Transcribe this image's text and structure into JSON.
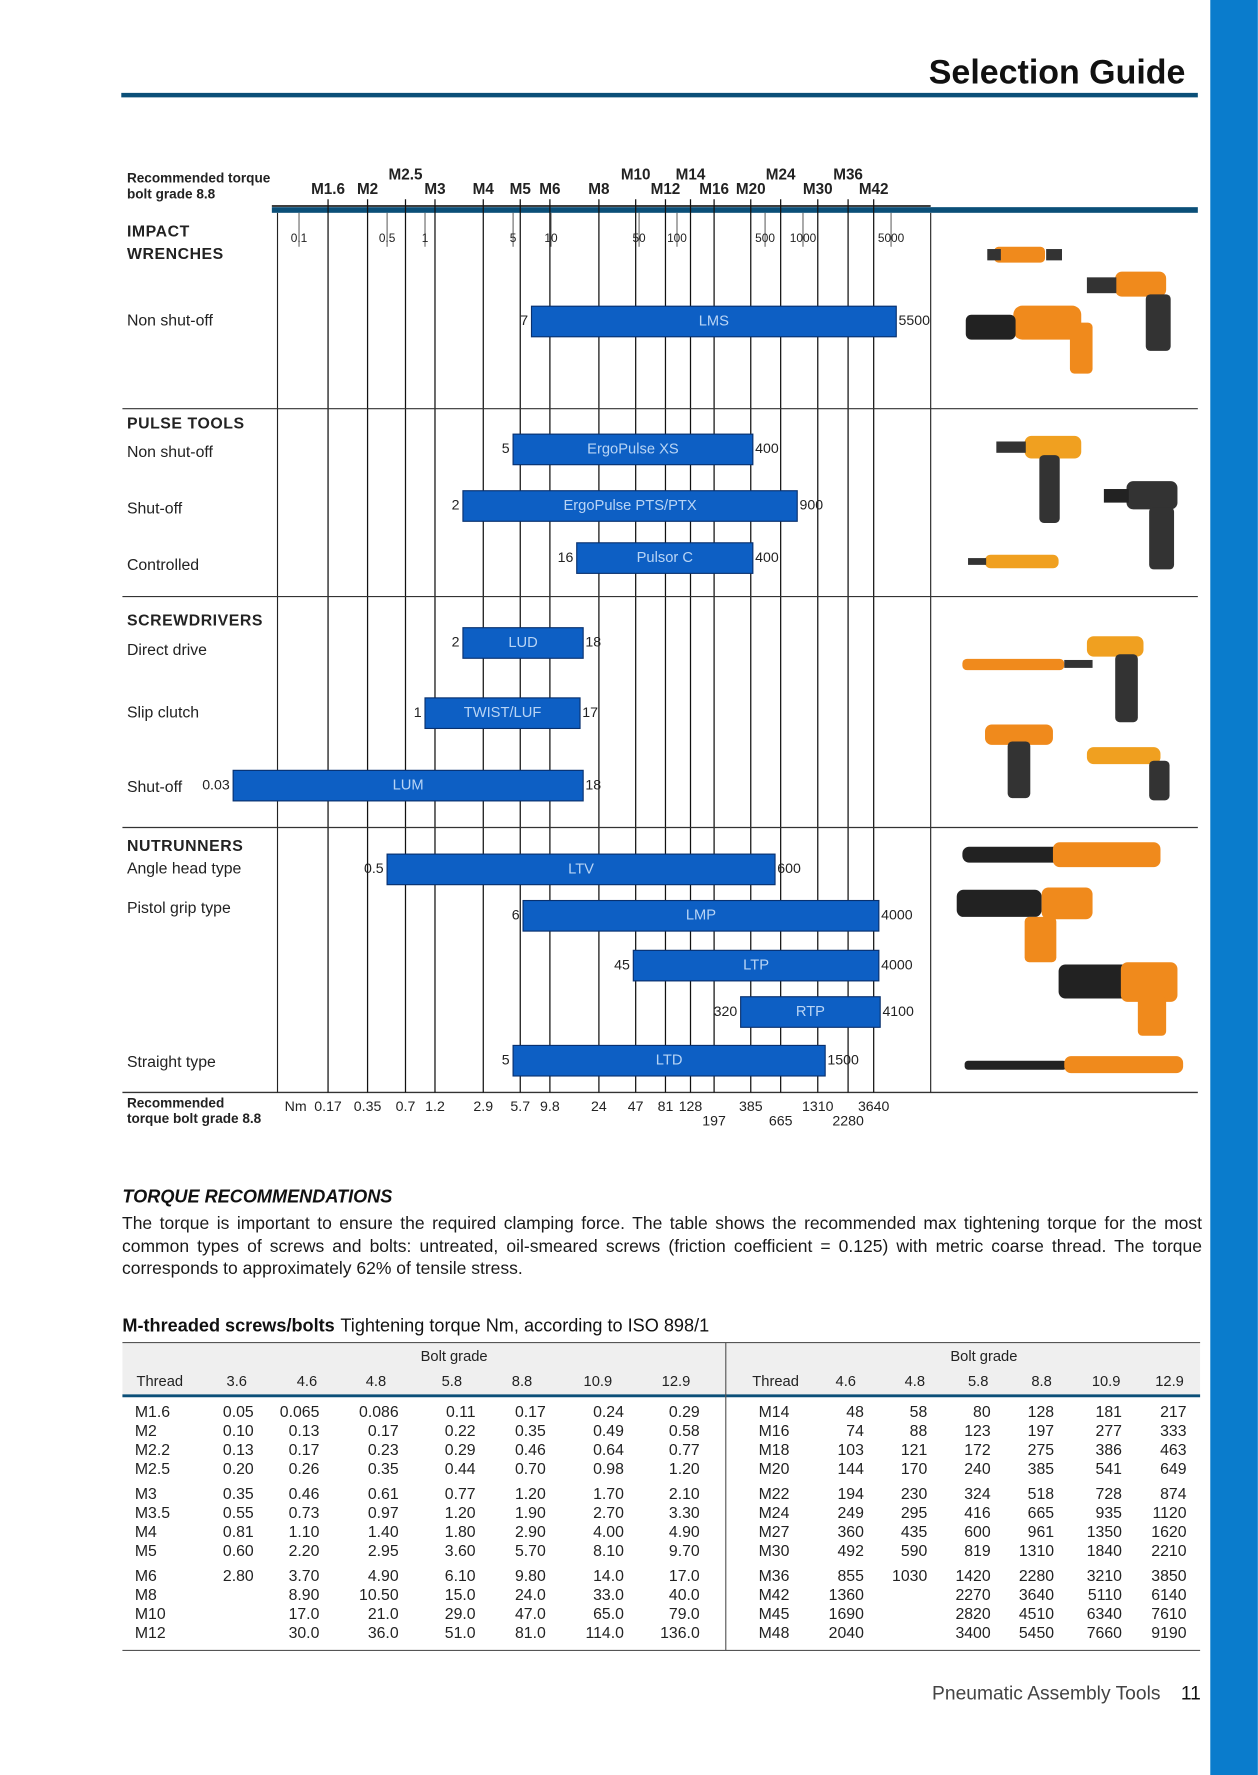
{
  "header": {
    "title": "Selection Guide"
  },
  "guide": {
    "top_label": [
      "Recommended torque",
      "bolt grade 8.8"
    ],
    "bottom_label": [
      "Recommended",
      "torque bolt grade 8.8"
    ],
    "unit": "Nm",
    "threads": [
      {
        "label": "M1.6",
        "torque": 0.17
      },
      {
        "label": "M2",
        "torque": 0.35
      },
      {
        "label": "M2.5",
        "torque": 0.7
      },
      {
        "label": "M3",
        "torque": 1.2
      },
      {
        "label": "M4",
        "torque": 2.9
      },
      {
        "label": "M5",
        "torque": 5.7
      },
      {
        "label": "M6",
        "torque": 9.8
      },
      {
        "label": "M8",
        "torque": 24
      },
      {
        "label": "M10",
        "torque": 47
      },
      {
        "label": "M12",
        "torque": 81
      },
      {
        "label": "M14",
        "torque": 128
      },
      {
        "label": "M16",
        "torque": 197
      },
      {
        "label": "M20",
        "torque": 385
      },
      {
        "label": "M24",
        "torque": 665
      },
      {
        "label": "M30",
        "torque": 1310
      },
      {
        "label": "M36",
        "torque": 2280
      },
      {
        "label": "M42",
        "torque": 3640
      }
    ],
    "axis_ticks": [
      0.1,
      0.5,
      1,
      5,
      10,
      50,
      100,
      500,
      1000,
      5000
    ],
    "groups": [
      {
        "title": [
          "IMPACT",
          "WRENCHES"
        ],
        "rows": [
          {
            "label": "Non shut-off",
            "bars": [
              {
                "tool": "LMS",
                "min": 7,
                "max": 5500
              }
            ]
          }
        ]
      },
      {
        "title": [
          "PULSE TOOLS"
        ],
        "rows": [
          {
            "label": "Non shut-off",
            "bars": [
              {
                "tool": "ErgoPulse  XS",
                "min": 5,
                "max": 400
              }
            ]
          },
          {
            "label": "Shut-off",
            "bars": [
              {
                "tool": "ErgoPulse PTS/PTX",
                "min": 2,
                "max": 900
              }
            ]
          },
          {
            "label": "Controlled",
            "bars": [
              {
                "tool": "Pulsor C",
                "min": 16,
                "max": 400
              }
            ]
          }
        ]
      },
      {
        "title": [
          "SCREWDRIVERS"
        ],
        "rows": [
          {
            "label": "Direct drive",
            "bars": [
              {
                "tool": "LUD",
                "min": 2,
                "max": 18
              }
            ]
          },
          {
            "label": "Slip clutch",
            "bars": [
              {
                "tool": "TWIST/LUF",
                "min": 1,
                "max": 17
              }
            ]
          },
          {
            "label": "Shut-off",
            "bars": [
              {
                "tool": "LUM",
                "min": 0.03,
                "max": 18
              }
            ]
          }
        ]
      },
      {
        "title": [
          "NUTRUNNERS"
        ],
        "rows": [
          {
            "label": "Angle head type",
            "bars": [
              {
                "tool": "LTV",
                "min": 0.5,
                "max": 600
              }
            ]
          },
          {
            "label": "Pistol grip type",
            "bars": [
              {
                "tool": "LMP",
                "min": 6,
                "max": 4000
              },
              {
                "tool": "LTP",
                "min": 45,
                "max": 4000
              },
              {
                "tool": "RTP",
                "min": 320,
                "max": 4100
              }
            ]
          },
          {
            "label": "Straight type",
            "bars": [
              {
                "tool": "LTD",
                "min": 5,
                "max": 1500
              }
            ]
          }
        ]
      }
    ]
  },
  "torque_recommendations": {
    "title": "TORQUE RECOMMENDATIONS",
    "text": "The torque is important to ensure the required clamping force. The table shows the recommended max tightening torque for the most common types of screws and bolts: untreated, oil-smeared screws (friction coefficient = 0.125) with metric coarse thread. The torque corresponds to approximately 62% of tensile stress."
  },
  "table": {
    "caption_bold": "M-threaded screws/bolts",
    "caption": "Tightening torque Nm, according to ISO 898/1",
    "left": {
      "group_header": "Bolt grade",
      "columns": [
        "Thread",
        "3.6",
        "4.6",
        "4.8",
        "5.8",
        "8.8",
        "10.9",
        "12.9"
      ],
      "rows": [
        [
          "M1.6",
          "0.05",
          "0.065",
          "0.086",
          "0.11",
          "0.17",
          "0.24",
          "0.29"
        ],
        [
          "M2",
          "0.10",
          "0.13",
          "0.17",
          "0.22",
          "0.35",
          "0.49",
          "0.58"
        ],
        [
          "M2.2",
          "0.13",
          "0.17",
          "0.23",
          "0.29",
          "0.46",
          "0.64",
          "0.77"
        ],
        [
          "M2.5",
          "0.20",
          "0.26",
          "0.35",
          "0.44",
          "0.70",
          "0.98",
          "1.20"
        ],
        [
          "M3",
          "0.35",
          "0.46",
          "0.61",
          "0.77",
          "1.20",
          "1.70",
          "2.10"
        ],
        [
          "M3.5",
          "0.55",
          "0.73",
          "0.97",
          "1.20",
          "1.90",
          "2.70",
          "3.30"
        ],
        [
          "M4",
          "0.81",
          "1.10",
          "1.40",
          "1.80",
          "2.90",
          "4.00",
          "4.90"
        ],
        [
          "M5",
          "0.60",
          "2.20",
          "2.95",
          "3.60",
          "5.70",
          "8.10",
          "9.70"
        ],
        [
          "M6",
          "2.80",
          "3.70",
          "4.90",
          "6.10",
          "9.80",
          "14.0",
          "17.0"
        ],
        [
          "M8",
          null,
          "8.90",
          "10.50",
          "15.0",
          "24.0",
          "33.0",
          "40.0"
        ],
        [
          "M10",
          null,
          "17.0",
          "21.0",
          "29.0",
          "47.0",
          "65.0",
          "79.0"
        ],
        [
          "M12",
          null,
          "30.0",
          "36.0",
          "51.0",
          "81.0",
          "114.0",
          "136.0"
        ]
      ]
    },
    "right": {
      "group_header": "Bolt grade",
      "columns": [
        "Thread",
        "4.6",
        "4.8",
        "5.8",
        "8.8",
        "10.9",
        "12.9"
      ],
      "rows": [
        [
          "M14",
          "48",
          "58",
          "80",
          "128",
          "181",
          "217"
        ],
        [
          "M16",
          "74",
          "88",
          "123",
          "197",
          "277",
          "333"
        ],
        [
          "M18",
          "103",
          "121",
          "172",
          "275",
          "386",
          "463"
        ],
        [
          "M20",
          "144",
          "170",
          "240",
          "385",
          "541",
          "649"
        ],
        [
          "M22",
          "194",
          "230",
          "324",
          "518",
          "728",
          "874"
        ],
        [
          "M24",
          "249",
          "295",
          "416",
          "665",
          "935",
          "1120"
        ],
        [
          "M27",
          "360",
          "435",
          "600",
          "961",
          "1350",
          "1620"
        ],
        [
          "M30",
          "492",
          "590",
          "819",
          "1310",
          "1840",
          "2210"
        ],
        [
          "M36",
          "855",
          "1030",
          "1420",
          "2280",
          "3210",
          "3850"
        ],
        [
          "M42",
          "1360",
          null,
          "2270",
          "3640",
          "5110",
          "6140"
        ],
        [
          "M45",
          "1690",
          null,
          "2820",
          "4510",
          "6340",
          "7610"
        ],
        [
          "M48",
          "2040",
          null,
          "3400",
          "5450",
          "7660",
          "9190"
        ]
      ]
    }
  },
  "footer": {
    "title": "Pneumatic Assembly Tools",
    "page": "11"
  }
}
